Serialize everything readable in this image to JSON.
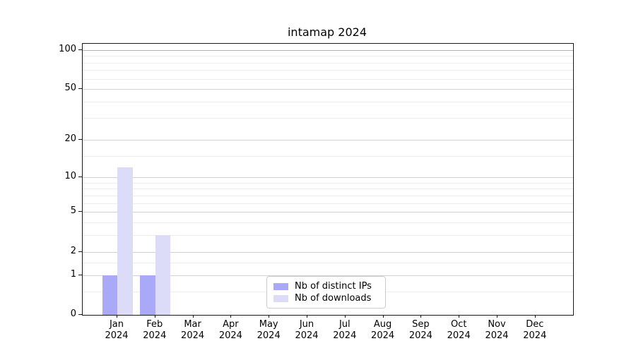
{
  "title": "intamap 2024",
  "chart_data": {
    "type": "bar",
    "title": "intamap 2024",
    "categories": [
      "Jan",
      "Feb",
      "Mar",
      "Apr",
      "May",
      "Jun",
      "Jul",
      "Aug",
      "Sep",
      "Oct",
      "Nov",
      "Dec"
    ],
    "year": "2024",
    "series": [
      {
        "name": "Nb of distinct IPs",
        "color": "#a9a9f7",
        "values": [
          1,
          1,
          0,
          0,
          0,
          0,
          0,
          0,
          0,
          0,
          0,
          0
        ]
      },
      {
        "name": "Nb of downloads",
        "color": "#dcdcf9",
        "values": [
          12,
          3,
          0,
          0,
          0,
          0,
          0,
          0,
          0,
          0,
          0,
          0
        ]
      }
    ],
    "yscale": "log1p",
    "ylim": [
      0,
      112
    ],
    "yticks_major": [
      0,
      1,
      2,
      5,
      10,
      20,
      50,
      100
    ],
    "yticks_minor": [
      0.5,
      1.5,
      3,
      4,
      6,
      7,
      8,
      9,
      15,
      30,
      40,
      60,
      70,
      80,
      90
    ],
    "xlabel": "",
    "ylabel": "",
    "grid": "horizontal-major-and-minor",
    "legend_position": "bottom-center",
    "frame": true,
    "background_color": "#ffffff",
    "axis_color": "#1a1a1a"
  }
}
